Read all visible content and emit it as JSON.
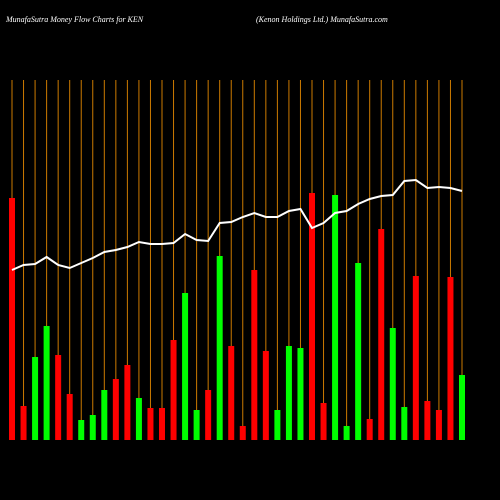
{
  "chart_data": {
    "type": "bar-line",
    "title": "MunafaSutra  Money Flow  Charts for KEN",
    "subtitle": "(Kenon  Holdings Ltd.) MunafaSutra.com",
    "categories": [
      null,
      null,
      null,
      null,
      null,
      null,
      null,
      null,
      null,
      null,
      null,
      null,
      null,
      null,
      null,
      null,
      null,
      null,
      null,
      null,
      null,
      null,
      null,
      null,
      null,
      null,
      null,
      null,
      null,
      null,
      null,
      null,
      null,
      null,
      null,
      null,
      null,
      null,
      null,
      null
    ],
    "series": [
      {
        "kind": "bar",
        "values": [
          242,
          34,
          83,
          114,
          85,
          46,
          20,
          25,
          50,
          61,
          75,
          42,
          32,
          32,
          100,
          147,
          30,
          50,
          184,
          94,
          14,
          170,
          89,
          30,
          94,
          92,
          247,
          37,
          245,
          14,
          177,
          21,
          211,
          112,
          33,
          164,
          39,
          30,
          163,
          65
        ],
        "colors": [
          "#ff0000",
          "#ff0000",
          "#00ff00",
          "#00ff00",
          "#ff0000",
          "#ff0000",
          "#00ff00",
          "#00ff00",
          "#00ff00",
          "#ff0000",
          "#ff0000",
          "#00ff00",
          "#ff0000",
          "#ff0000",
          "#ff0000",
          "#00ff00",
          "#00ff00",
          "#ff0000",
          "#00ff00",
          "#ff0000",
          "#ff0000",
          "#ff0000",
          "#ff0000",
          "#00ff00",
          "#00ff00",
          "#00ff00",
          "#ff0000",
          "#ff0000",
          "#00ff00",
          "#00ff00",
          "#00ff00",
          "#ff0000",
          "#ff0000",
          "#00ff00",
          "#00ff00",
          "#ff0000",
          "#ff0000",
          "#ff0000",
          "#ff0000",
          "#00ff00"
        ]
      },
      {
        "kind": "line",
        "color": "#ffffff",
        "values": [
          170,
          175,
          176,
          183,
          175,
          172,
          177,
          182,
          188,
          190,
          193,
          198,
          196,
          196,
          197,
          206,
          200,
          199,
          217,
          218,
          223,
          227,
          223,
          223,
          229,
          231,
          212,
          217,
          227,
          229,
          236,
          241,
          244,
          245,
          259,
          260,
          252,
          253,
          252,
          249
        ]
      }
    ],
    "ylim": [
      0,
      360
    ],
    "grid_color": "#cc7a00"
  }
}
